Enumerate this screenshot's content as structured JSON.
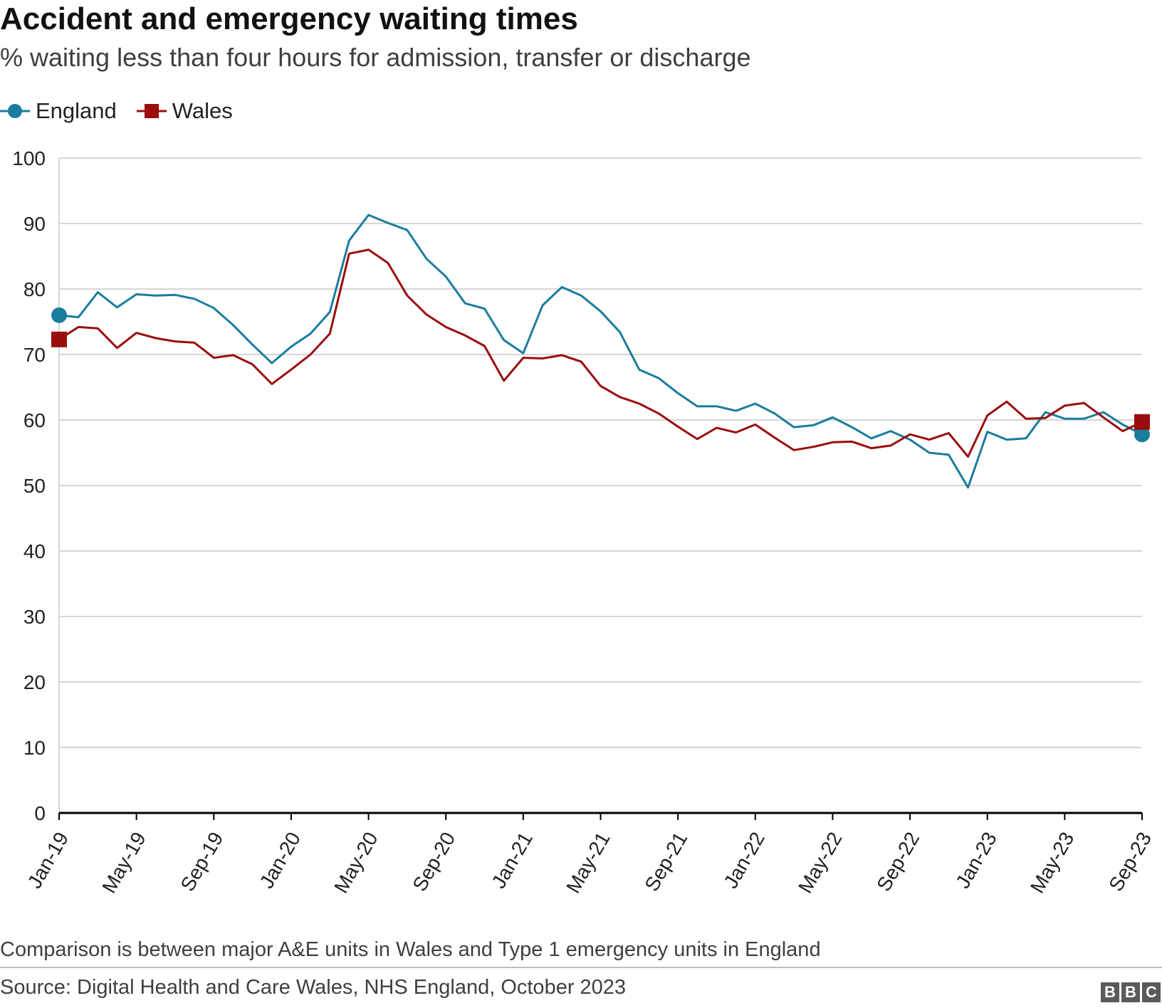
{
  "header": {
    "title": "Accident and emergency waiting times",
    "subtitle": "% waiting less than four hours for admission, transfer or discharge"
  },
  "legend": {
    "england_label": "England",
    "wales_label": "Wales"
  },
  "footer": {
    "note": "Comparison is between major A&E units in Wales and Type 1 emergency units in England",
    "source": "Source: Digital Health and Care Wales, NHS England, October 2023",
    "logo_letters": [
      "B",
      "B",
      "C"
    ]
  },
  "colors": {
    "england": "#1a7d9e",
    "wales": "#9b0d0d",
    "grid": "#d6d6d6",
    "axis": "#000000"
  },
  "chart_data": {
    "type": "line",
    "title": "Accident and emergency waiting times",
    "subtitle": "% waiting less than four hours for admission, transfer or discharge",
    "xlabel": "",
    "ylabel": "",
    "ylim": [
      0,
      100
    ],
    "yticks": [
      0,
      10,
      20,
      30,
      40,
      50,
      60,
      70,
      80,
      90,
      100
    ],
    "grid": true,
    "legend_position": "top-left",
    "x": [
      "Jan-19",
      "Feb-19",
      "Mar-19",
      "Apr-19",
      "May-19",
      "Jun-19",
      "Jul-19",
      "Aug-19",
      "Sep-19",
      "Oct-19",
      "Nov-19",
      "Dec-19",
      "Jan-20",
      "Feb-20",
      "Mar-20",
      "Apr-20",
      "May-20",
      "Jun-20",
      "Jul-20",
      "Aug-20",
      "Sep-20",
      "Oct-20",
      "Nov-20",
      "Dec-20",
      "Jan-21",
      "Feb-21",
      "Mar-21",
      "Apr-21",
      "May-21",
      "Jun-21",
      "Jul-21",
      "Aug-21",
      "Sep-21",
      "Oct-21",
      "Nov-21",
      "Dec-21",
      "Jan-22",
      "Feb-22",
      "Mar-22",
      "Apr-22",
      "May-22",
      "Jun-22",
      "Jul-22",
      "Aug-22",
      "Sep-22",
      "Oct-22",
      "Nov-22",
      "Dec-22",
      "Jan-23",
      "Feb-23",
      "Mar-23",
      "Apr-23",
      "May-23",
      "Jun-23",
      "Jul-23",
      "Aug-23",
      "Sep-23"
    ],
    "x_tick_labels": [
      "Jan-19",
      "May-19",
      "Sep-19",
      "Jan-20",
      "May-20",
      "Sep-20",
      "Jan-21",
      "May-21",
      "Sep-21",
      "Jan-22",
      "May-22",
      "Sep-22",
      "Jan-23",
      "May-23",
      "Sep-23"
    ],
    "series": [
      {
        "name": "England",
        "marker": "circle",
        "values": [
          76.0,
          75.7,
          79.5,
          77.2,
          79.2,
          79.0,
          79.1,
          78.5,
          77.1,
          74.5,
          71.5,
          68.7,
          71.2,
          73.2,
          76.5,
          87.4,
          91.3,
          90.1,
          89.0,
          84.6,
          81.9,
          77.8,
          77.0,
          72.2,
          70.2,
          77.5,
          80.3,
          79.0,
          76.6,
          73.4,
          67.7,
          66.4,
          64.1,
          62.1,
          62.1,
          61.4,
          62.5,
          61.0,
          58.9,
          59.2,
          60.4,
          58.9,
          57.2,
          58.3,
          57.0,
          55.0,
          54.7,
          49.7,
          58.2,
          57.0,
          57.2,
          61.2,
          60.2,
          60.2,
          61.2,
          59.3,
          57.8
        ]
      },
      {
        "name": "Wales",
        "marker": "square",
        "values": [
          72.3,
          74.2,
          74.0,
          71.0,
          73.3,
          72.5,
          72.0,
          71.8,
          69.5,
          69.9,
          68.5,
          65.5,
          67.7,
          70.0,
          73.2,
          85.4,
          86.0,
          84.0,
          79.0,
          76.1,
          74.2,
          72.9,
          71.3,
          66.0,
          69.5,
          69.4,
          69.9,
          68.9,
          65.2,
          63.5,
          62.5,
          61.0,
          59.0,
          57.1,
          58.8,
          58.1,
          59.3,
          57.3,
          55.4,
          55.9,
          56.6,
          56.7,
          55.7,
          56.1,
          57.8,
          57.0,
          58.0,
          54.4,
          60.7,
          62.8,
          60.2,
          60.3,
          62.2,
          62.6,
          60.4,
          58.3,
          59.7
        ]
      }
    ]
  }
}
